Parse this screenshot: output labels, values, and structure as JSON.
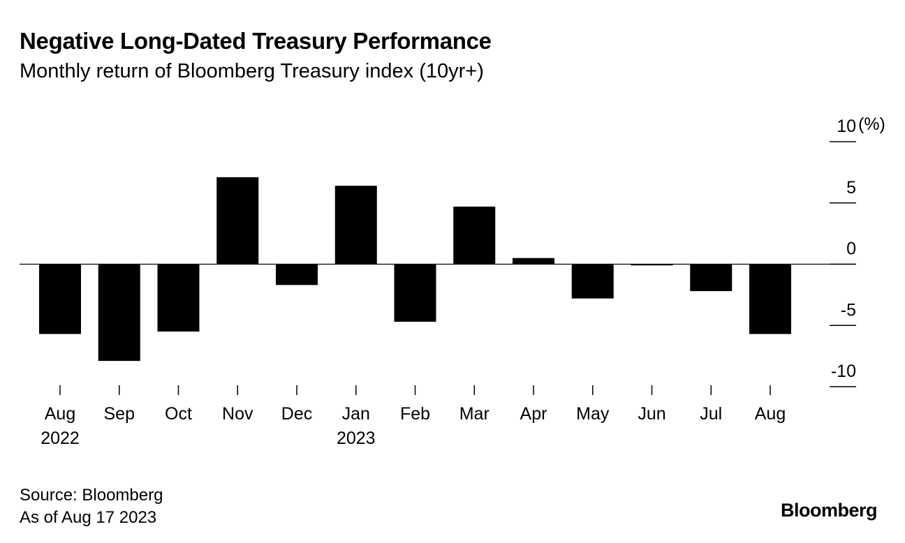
{
  "header": {
    "title": "Negative Long-Dated Treasury Performance",
    "subtitle": "Monthly return of Bloomberg Treasury index (10yr+)"
  },
  "footer": {
    "source": "Source: Bloomberg",
    "as_of": "As of Aug 17 2023",
    "brand": "Bloomberg"
  },
  "chart_data": {
    "type": "bar",
    "title": "Negative Long-Dated Treasury Performance",
    "subtitle": "Monthly return of Bloomberg Treasury index (10yr+)",
    "unit_label": "(%)",
    "categories": [
      "Aug",
      "Sep",
      "Oct",
      "Nov",
      "Dec",
      "Jan",
      "Feb",
      "Mar",
      "Apr",
      "May",
      "Jun",
      "Jul",
      "Aug"
    ],
    "year_labels": [
      "2022",
      "",
      "",
      "",
      "",
      "2023",
      "",
      "",
      "",
      "",
      "",
      "",
      ""
    ],
    "values": [
      -5.7,
      -7.9,
      -5.5,
      7.1,
      -1.7,
      6.4,
      -4.7,
      4.7,
      0.5,
      -2.8,
      -0.1,
      -2.2,
      -5.7
    ],
    "ylim": [
      -10,
      10
    ],
    "yticks": [
      10,
      5,
      0,
      -5,
      -10
    ],
    "ytick_labels": [
      "10",
      "5",
      "0",
      "-5",
      "-10"
    ],
    "color": "#000000",
    "y_axis_position": "right",
    "grid": false
  }
}
